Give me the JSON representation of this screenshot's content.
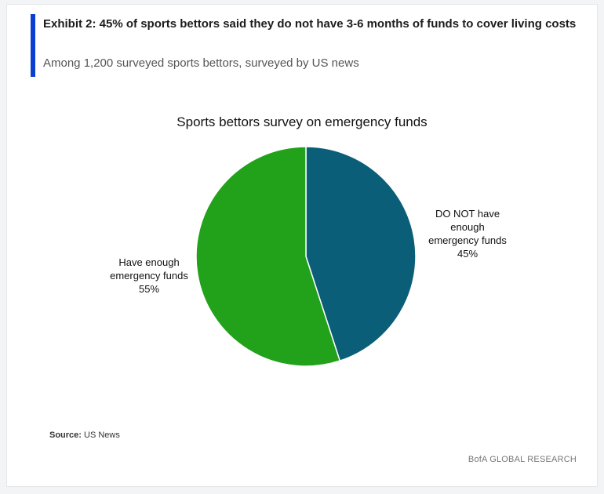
{
  "exhibit": {
    "title": "Exhibit 2: 45% of sports bettors said they do not have 3-6 months of funds to cover living costs",
    "subtitle": "Among 1,200 surveyed sports bettors, surveyed by US news"
  },
  "chart_data": {
    "type": "pie",
    "title": "Sports bettors survey on emergency funds",
    "slices": [
      {
        "label_lines": [
          "DO NOT have",
          "enough",
          "emergency funds"
        ],
        "value": 45,
        "value_label": "45%",
        "color": "#0b5e78"
      },
      {
        "label_lines": [
          "Have enough",
          "emergency funds"
        ],
        "value": 55,
        "value_label": "55%",
        "color": "#22a11a"
      }
    ],
    "legend": "none",
    "start_angle": "12 o'clock",
    "direction": "clockwise"
  },
  "footer": {
    "source_label": "Source:",
    "source_text": "US News",
    "brand": "BofA GLOBAL RESEARCH"
  }
}
